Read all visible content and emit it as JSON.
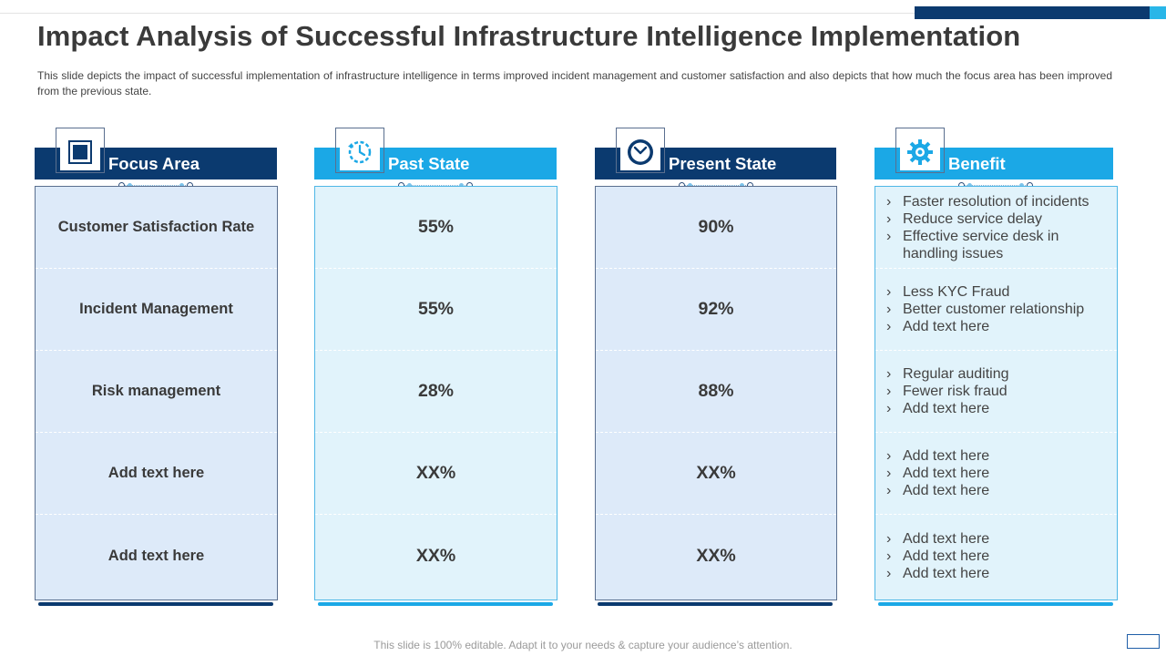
{
  "slide": {
    "title": "Impact Analysis of Successful Infrastructure Intelligence Implementation",
    "subtitle": "This slide depicts the impact of successful implementation of infrastructure intelligence in terms improved  incident management  and customer satisfaction and also depicts that how much the focus area has been improved  from the previous  state.",
    "footer": "This slide is 100% editable. Adapt it to your needs & capture your audience’s attention."
  },
  "colors": {
    "dark_blue": "#0b3a6f",
    "light_blue": "#1ba8e6",
    "dark_body": "#ddeaf9",
    "light_body": "#e1f3fb"
  },
  "columns": {
    "focus": {
      "header": "Focus Area",
      "icon": "square-target-icon",
      "rows": [
        "Customer Satisfaction Rate",
        "Incident Management",
        "Risk management",
        "Add text here",
        "Add text here"
      ]
    },
    "past": {
      "header": "Past State",
      "icon": "history-clock-icon",
      "rows": [
        "55%",
        "55%",
        "28%",
        "XX%",
        "XX%"
      ]
    },
    "present": {
      "header": "Present State",
      "icon": "clock-icon",
      "rows": [
        "90%",
        "92%",
        "88%",
        "XX%",
        "XX%"
      ]
    },
    "benefit": {
      "header": "Benefit",
      "icon": "gear-icon",
      "rows": [
        [
          "Faster resolution of incidents",
          "Reduce service delay",
          "Effective service desk in handling issues"
        ],
        [
          "Less KYC Fraud",
          "Better customer relationship",
          "Add text here"
        ],
        [
          "Regular auditing",
          "Fewer risk fraud",
          "Add text here"
        ],
        [
          "Add text here",
          "Add text here",
          "Add text here"
        ],
        [
          "Add text here",
          "Add text here",
          "Add text here"
        ]
      ]
    }
  }
}
